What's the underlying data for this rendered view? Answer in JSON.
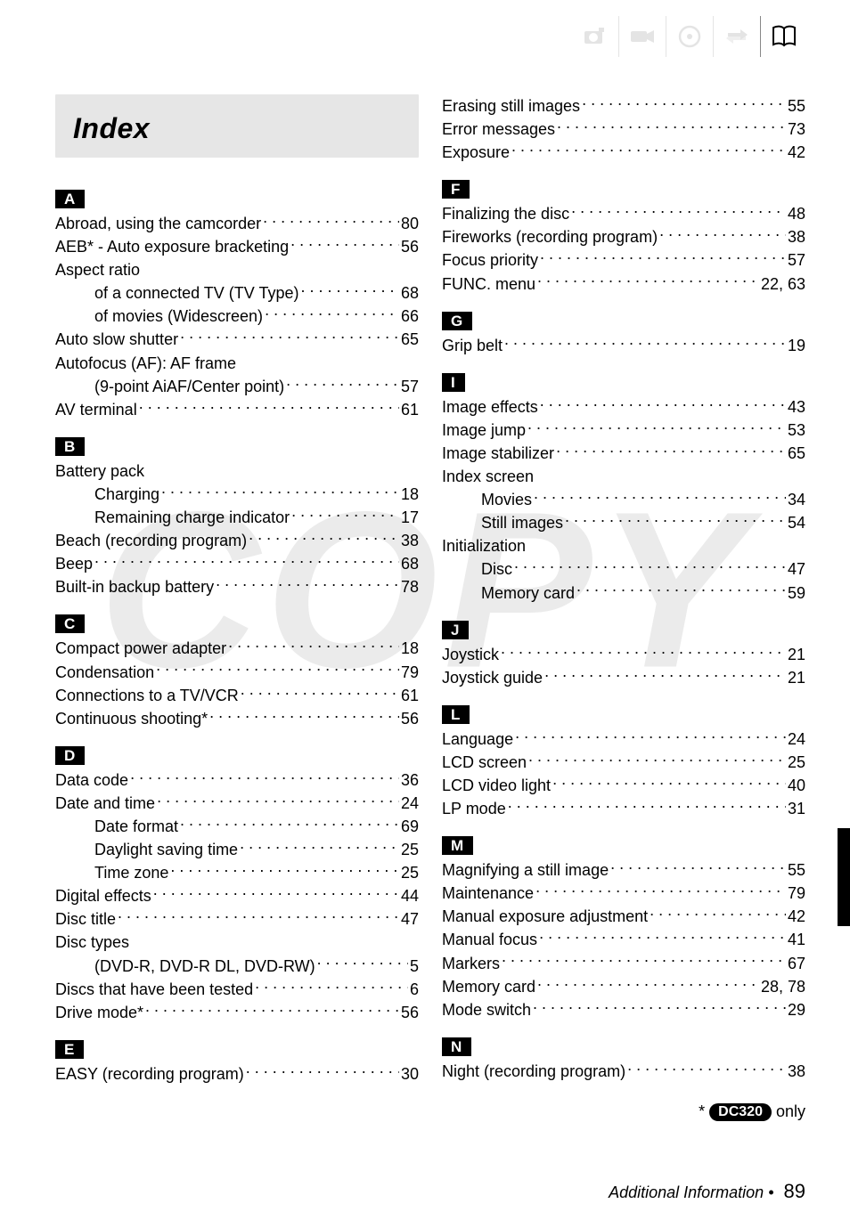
{
  "title": "Index",
  "watermark": "COPY",
  "footnote_prefix": "* ",
  "footnote_pill": "DC320",
  "footnote_suffix": " only",
  "footer_text": "Additional Information",
  "footer_bullet": " • ",
  "footer_page": "89",
  "icons": [
    {
      "name": "camera-icon",
      "active": false
    },
    {
      "name": "camcorder-icon",
      "active": false
    },
    {
      "name": "disc-icon",
      "active": false
    },
    {
      "name": "transfer-icon",
      "active": false
    },
    {
      "name": "book-icon",
      "active": true
    }
  ],
  "left": [
    {
      "letter": "A",
      "entries": [
        {
          "label": "Abroad, using the camcorder",
          "page": "80"
        },
        {
          "label": "AEB* - Auto exposure bracketing",
          "page": "56"
        },
        {
          "label": "Aspect ratio",
          "page": ""
        },
        {
          "label": "of a connected TV (TV Type)",
          "page": "68",
          "sub": true
        },
        {
          "label": "of movies (Widescreen)",
          "page": "66",
          "sub": true
        },
        {
          "label": "Auto slow shutter",
          "page": "65"
        },
        {
          "label": "Autofocus (AF): AF frame",
          "page": ""
        },
        {
          "label": "(9-point AiAF/Center point)",
          "page": "57",
          "sub": true
        },
        {
          "label": "AV terminal",
          "page": "61"
        }
      ]
    },
    {
      "letter": "B",
      "entries": [
        {
          "label": "Battery pack",
          "page": ""
        },
        {
          "label": "Charging",
          "page": "18",
          "sub": true
        },
        {
          "label": "Remaining charge indicator",
          "page": "17",
          "sub": true
        },
        {
          "label": "Beach (recording program)",
          "page": "38"
        },
        {
          "label": "Beep",
          "page": "68"
        },
        {
          "label": "Built-in backup battery",
          "page": "78"
        }
      ]
    },
    {
      "letter": "C",
      "entries": [
        {
          "label": "Compact power adapter",
          "page": "18"
        },
        {
          "label": "Condensation",
          "page": "79"
        },
        {
          "label": "Connections to a TV/VCR",
          "page": "61"
        },
        {
          "label": "Continuous shooting*",
          "page": "56"
        }
      ]
    },
    {
      "letter": "D",
      "entries": [
        {
          "label": "Data code",
          "page": "36"
        },
        {
          "label": "Date and time",
          "page": "24"
        },
        {
          "label": "Date format",
          "page": "69",
          "sub": true
        },
        {
          "label": "Daylight saving time",
          "page": "25",
          "sub": true
        },
        {
          "label": "Time zone",
          "page": "25",
          "sub": true
        },
        {
          "label": "Digital effects",
          "page": "44"
        },
        {
          "label": "Disc title",
          "page": "47"
        },
        {
          "label": "Disc types",
          "page": ""
        },
        {
          "label": "(DVD-R, DVD-R DL, DVD-RW)",
          "page": "5",
          "sub": true
        },
        {
          "label": "Discs that have been tested",
          "page": "6"
        },
        {
          "label": "Drive mode*",
          "page": "56"
        }
      ]
    },
    {
      "letter": "E",
      "entries": [
        {
          "label": "EASY (recording program)",
          "page": "30"
        }
      ]
    }
  ],
  "right": [
    {
      "letter": "",
      "entries": [
        {
          "label": "Erasing still images",
          "page": "55"
        },
        {
          "label": "Error messages",
          "page": "73"
        },
        {
          "label": "Exposure",
          "page": "42"
        }
      ]
    },
    {
      "letter": "F",
      "entries": [
        {
          "label": "Finalizing the disc",
          "page": "48"
        },
        {
          "label": "Fireworks (recording program)",
          "page": "38"
        },
        {
          "label": "Focus priority",
          "page": "57"
        },
        {
          "label": "FUNC. menu",
          "page": "22, 63"
        }
      ]
    },
    {
      "letter": "G",
      "entries": [
        {
          "label": "Grip belt",
          "page": "19"
        }
      ]
    },
    {
      "letter": "I",
      "entries": [
        {
          "label": "Image effects",
          "page": "43"
        },
        {
          "label": "Image jump",
          "page": "53"
        },
        {
          "label": "Image stabilizer",
          "page": "65"
        },
        {
          "label": "Index screen",
          "page": ""
        },
        {
          "label": "Movies",
          "page": "34",
          "sub": true
        },
        {
          "label": "Still images",
          "page": "54",
          "sub": true
        },
        {
          "label": "Initialization",
          "page": ""
        },
        {
          "label": "Disc",
          "page": "47",
          "sub": true
        },
        {
          "label": "Memory card",
          "page": "59",
          "sub": true
        }
      ]
    },
    {
      "letter": "J",
      "entries": [
        {
          "label": "Joystick",
          "page": "21"
        },
        {
          "label": "Joystick guide",
          "page": "21"
        }
      ]
    },
    {
      "letter": "L",
      "entries": [
        {
          "label": "Language",
          "page": "24"
        },
        {
          "label": "LCD screen",
          "page": "25"
        },
        {
          "label": "LCD video light",
          "page": "40"
        },
        {
          "label": "LP mode",
          "page": "31"
        }
      ]
    },
    {
      "letter": "M",
      "entries": [
        {
          "label": "Magnifying a still image",
          "page": "55"
        },
        {
          "label": "Maintenance",
          "page": "79"
        },
        {
          "label": "Manual exposure adjustment",
          "page": "42"
        },
        {
          "label": "Manual focus",
          "page": "41"
        },
        {
          "label": "Markers",
          "page": "67"
        },
        {
          "label": "Memory card",
          "page": "28, 78"
        },
        {
          "label": "Mode switch",
          "page": "29"
        }
      ]
    },
    {
      "letter": "N",
      "entries": [
        {
          "label": "Night (recording program)",
          "page": "38"
        }
      ]
    }
  ]
}
